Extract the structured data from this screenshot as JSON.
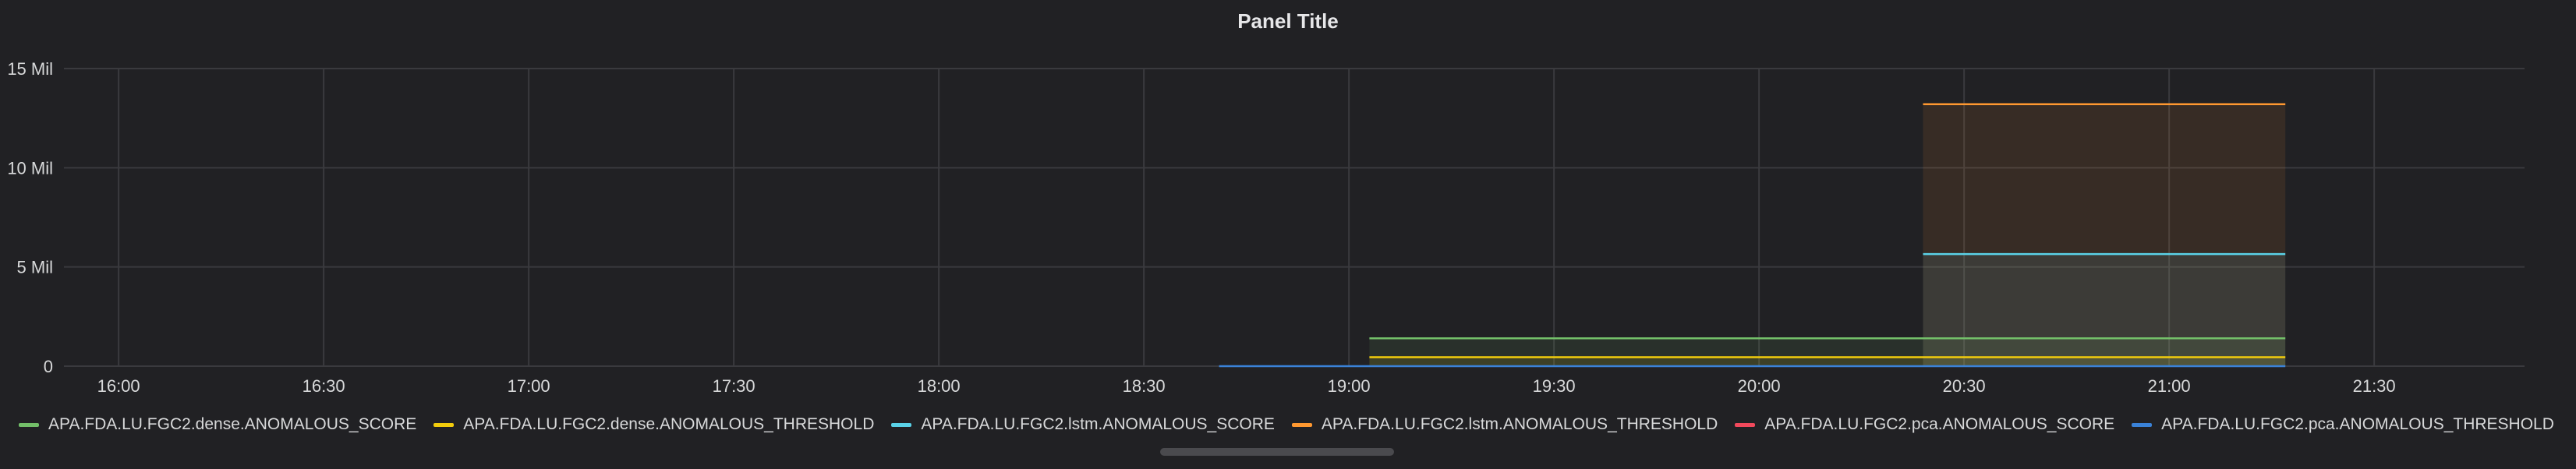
{
  "panel": {
    "title": "Panel Title"
  },
  "chart_data": {
    "type": "area",
    "title": "Panel Title",
    "xlabel": "",
    "ylabel": "",
    "x_ticks": [
      "16:00",
      "16:30",
      "17:00",
      "17:30",
      "18:00",
      "18:30",
      "19:00",
      "19:30",
      "20:00",
      "20:30",
      "21:00",
      "21:30"
    ],
    "y_ticks": [
      "0",
      "5 Mil",
      "10 Mil",
      "15 Mil"
    ],
    "y_tick_values": [
      0,
      5000000,
      10000000,
      15000000
    ],
    "ylim": [
      0,
      15000000
    ],
    "xlim": [
      "15:52",
      "21:52"
    ],
    "grid": true,
    "legend_position": "bottom",
    "series": [
      {
        "name": "APA.FDA.LU.FGC2.dense.ANOMALOUS_SCORE",
        "color": "#73bf69",
        "points": [
          [
            "19:03",
            1400000
          ],
          [
            "20:24",
            1400000
          ],
          [
            "21:17",
            1400000
          ]
        ]
      },
      {
        "name": "APA.FDA.LU.FGC2.dense.ANOMALOUS_THRESHOLD",
        "color": "#f2cc0c",
        "points": [
          [
            "19:03",
            450000
          ],
          [
            "20:24",
            450000
          ],
          [
            "21:17",
            450000
          ]
        ]
      },
      {
        "name": "APA.FDA.LU.FGC2.lstm.ANOMALOUS_SCORE",
        "color": "#5ad2e8",
        "points": [
          [
            "20:24",
            5650000
          ],
          [
            "21:17",
            5650000
          ]
        ]
      },
      {
        "name": "APA.FDA.LU.FGC2.lstm.ANOMALOUS_THRESHOLD",
        "color": "#ff9830",
        "points": [
          [
            "20:24",
            13200000
          ],
          [
            "21:17",
            13200000
          ]
        ]
      },
      {
        "name": "APA.FDA.LU.FGC2.pca.ANOMALOUS_SCORE",
        "color": "#f2495c",
        "points": []
      },
      {
        "name": "APA.FDA.LU.FGC2.pca.ANOMALOUS_THRESHOLD",
        "color": "#3a82d8",
        "points": [
          [
            "18:41",
            0
          ],
          [
            "21:17",
            0
          ]
        ]
      }
    ]
  }
}
